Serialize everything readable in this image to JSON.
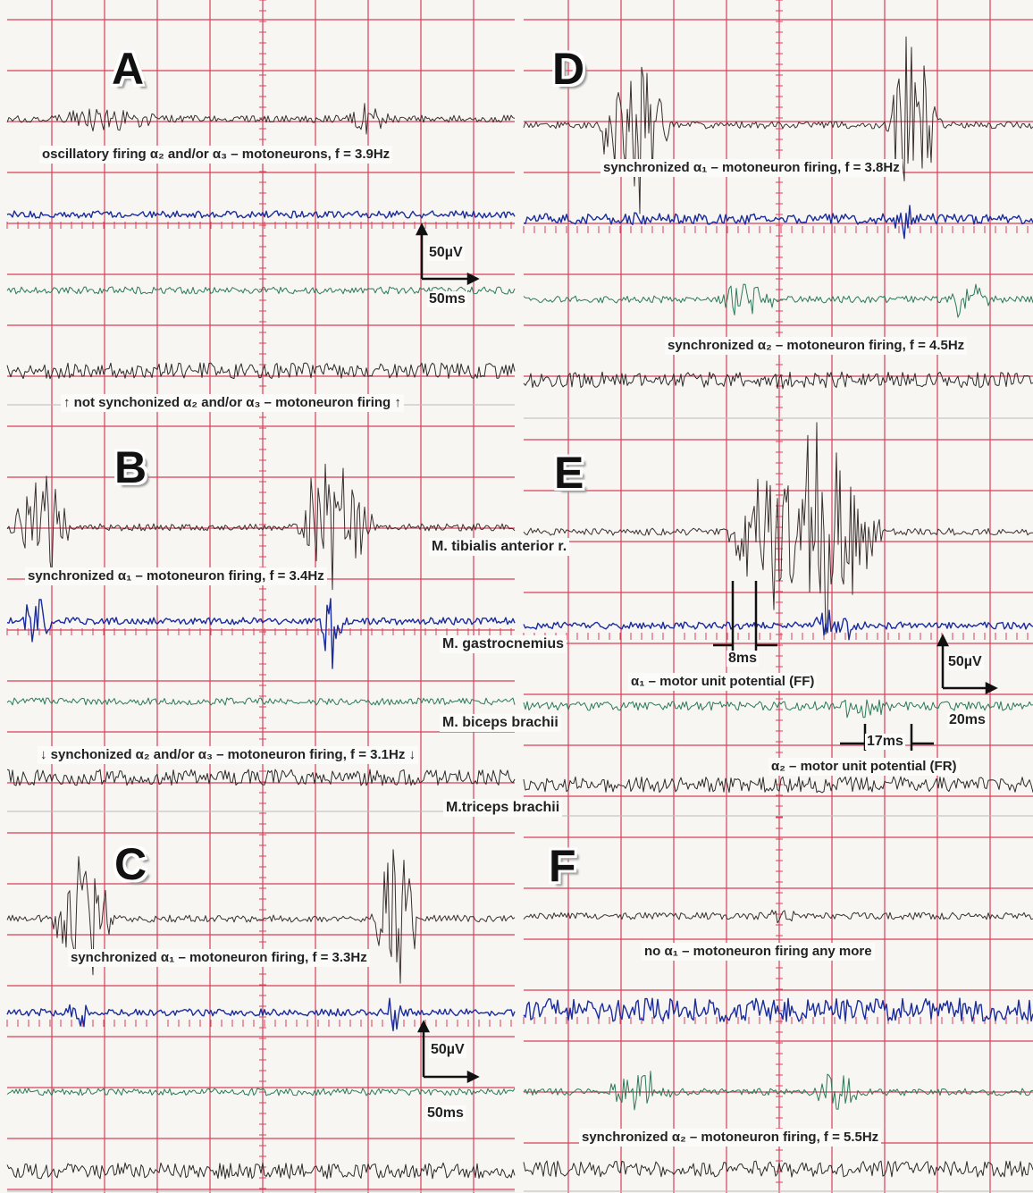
{
  "panels": [
    {
      "label": "A",
      "captions": [
        "oscillatory firing α₂ and/or α₃ – motoneurons, f = 3.9Hz",
        "↑ not synchonized α₂ and/or α₃ – motoneuron firing ↑"
      ],
      "scale_labels": [
        "50µV",
        "50ms"
      ]
    },
    {
      "label": "B",
      "captions": [
        "synchronized α₁ – motoneuron firing, f = 3.4Hz",
        "↓ synchonized α₂ and/or α₃ – motoneuron firing, f = 3.1Hz ↓"
      ]
    },
    {
      "label": "C",
      "captions": [
        "synchronized α₁ – motoneuron firing, f = 3.3Hz"
      ],
      "scale_labels": [
        "50µV",
        "50ms"
      ]
    },
    {
      "label": "D",
      "captions": [
        "synchronized α₁ – motoneuron firing, f = 3.8Hz",
        "synchronized α₂ – motoneuron firing, f = 4.5Hz"
      ]
    },
    {
      "label": "E",
      "captions": [
        "α₁ – motor unit potential (FF)",
        "α₂ – motor unit potential (FR)"
      ],
      "scale_labels": [
        "8ms",
        "50µV",
        "20ms",
        "17ms"
      ]
    },
    {
      "label": "F",
      "captions": [
        "no α₁ – motoneuron firing any more",
        "synchronized α₂ – motoneuron firing, f = 5.5Hz"
      ]
    }
  ],
  "muscles": [
    "M. tibialis anterior r.",
    "M. gastrocnemius",
    "M. biceps brachii",
    "M.triceps brachii"
  ]
}
